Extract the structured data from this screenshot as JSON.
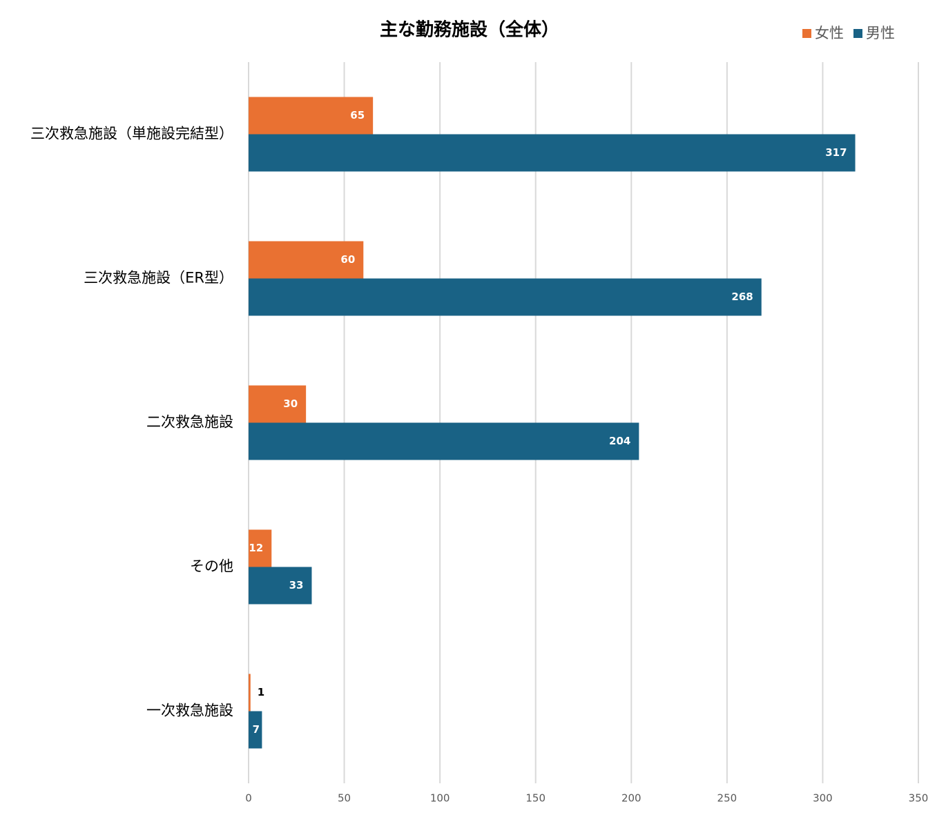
{
  "chart_data": {
    "type": "bar",
    "orientation": "horizontal",
    "title": "主な勤務施設（全体）",
    "categories": [
      "三次救急施設（単施設完結型）",
      "三次救急施設（ER型）",
      "二次救急施設",
      "その他",
      "一次救急施設"
    ],
    "series": [
      {
        "name": "女性",
        "color": "#e97132",
        "values": [
          65,
          60,
          30,
          12,
          1
        ]
      },
      {
        "name": "男性",
        "color": "#196285",
        "values": [
          317,
          268,
          204,
          33,
          7
        ]
      }
    ],
    "xlim": [
      0,
      350
    ],
    "xticks": [
      0,
      50,
      100,
      150,
      200,
      250,
      300,
      350
    ],
    "grid": true,
    "legend": "top-right"
  }
}
